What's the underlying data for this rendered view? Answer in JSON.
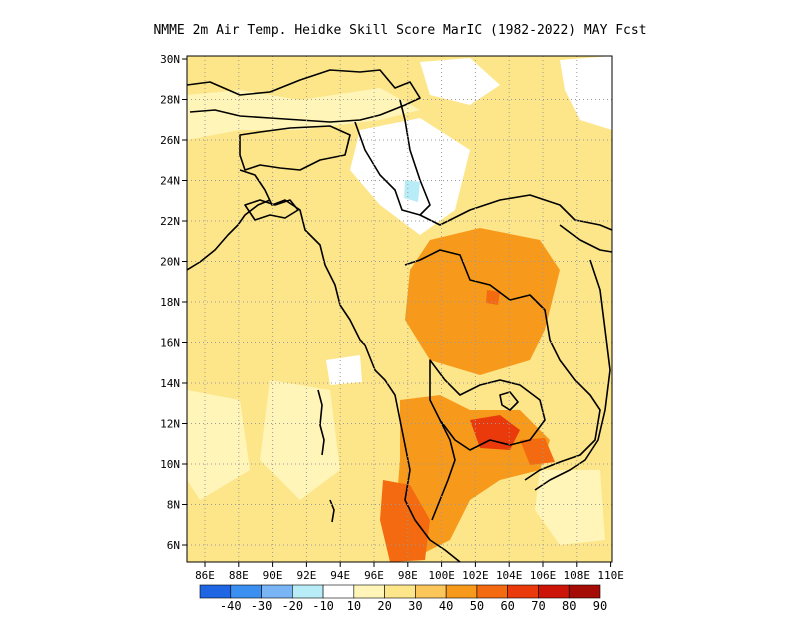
{
  "title": "NMME  2m Air Temp. Heidke Skill Score MarIC (1982-2022) MAY Fcst",
  "lat_labels": [
    "30N",
    "28N",
    "26N",
    "24N",
    "22N",
    "20N",
    "18N",
    "16N",
    "14N",
    "12N",
    "10N",
    "8N",
    "6N"
  ],
  "lon_labels": [
    "86E",
    "88E",
    "90E",
    "92E",
    "94E",
    "96E",
    "98E",
    "100E",
    "102E",
    "104E",
    "106E",
    "108E",
    "110E"
  ],
  "colorbar": {
    "labels": [
      "-40",
      "-30",
      "-20",
      "-10",
      "10",
      "20",
      "30",
      "40",
      "50",
      "60",
      "70",
      "80",
      "90"
    ],
    "colors": [
      "#1f66e5",
      "#3b8ff0",
      "#79b4f5",
      "#b8ecf7",
      "#ffffff",
      "#fff5b8",
      "#fde68a",
      "#fbc65a",
      "#f79a1c",
      "#f36a10",
      "#ea3a0c",
      "#cc1408",
      "#a50c06"
    ]
  },
  "colors": {
    "ocean_base": "#fde68a",
    "land_base": "#fbc65a",
    "coast": "#000000",
    "grid": "#9a9a9a"
  }
}
